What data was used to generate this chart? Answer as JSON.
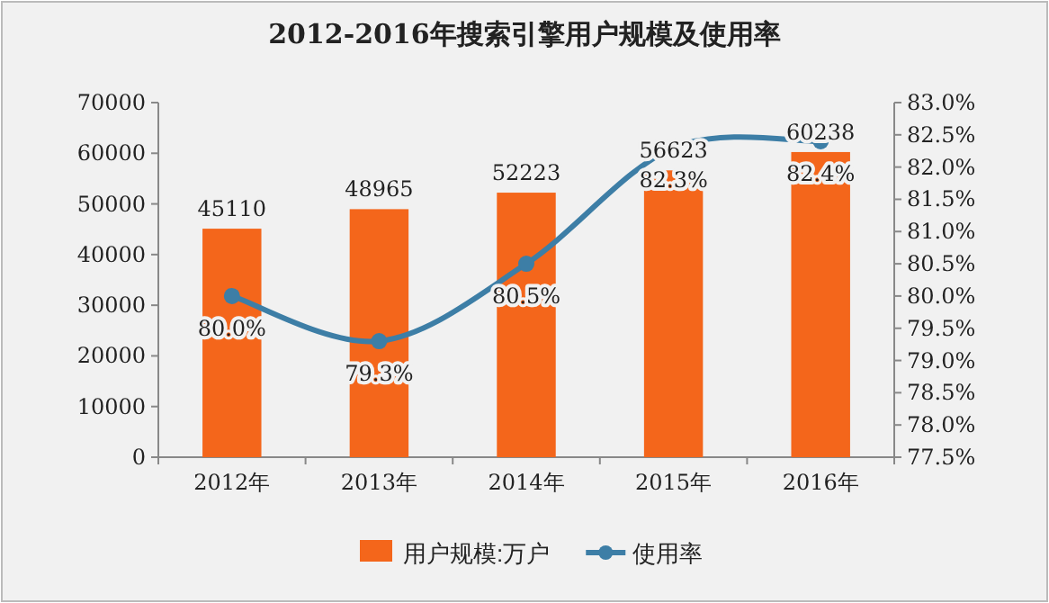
{
  "chart_data": {
    "type": "bar",
    "title": "2012-2016年搜索引擎用户规模及使用率",
    "categories": [
      "2012年",
      "2013年",
      "2014年",
      "2015年",
      "2016年"
    ],
    "series": [
      {
        "name": "用户规模:万户",
        "color": "#f4661b",
        "values": [
          45110,
          48965,
          52223,
          56623,
          60238
        ],
        "value_labels": [
          "45110",
          "48965",
          "52223",
          "56623",
          "60238"
        ]
      },
      {
        "name": "使用率",
        "type": "line",
        "axis": "y2",
        "color": "#3d7ea6",
        "marker": "circle",
        "values": [
          80.0,
          79.3,
          80.5,
          82.3,
          82.4
        ],
        "value_labels": [
          "80.0%",
          "79.3%",
          "80.5%",
          "82.3%",
          "82.4%"
        ]
      }
    ],
    "ylim": [
      0,
      70000
    ],
    "yticks": [
      0,
      10000,
      20000,
      30000,
      40000,
      50000,
      60000,
      70000
    ],
    "y2lim": [
      77.5,
      83
    ],
    "y2ticks": [
      {
        "value": 77.5,
        "label": "77.5%"
      },
      {
        "value": 78,
        "label": "78.0%"
      },
      {
        "value": 78.5,
        "label": "78.5%"
      },
      {
        "value": 79,
        "label": "79.0%"
      },
      {
        "value": 79.5,
        "label": "79.5%"
      },
      {
        "value": 80,
        "label": "80.0%"
      },
      {
        "value": 80.5,
        "label": "80.5%"
      },
      {
        "value": 81,
        "label": "81.0%"
      },
      {
        "value": 81.5,
        "label": "81.5%"
      },
      {
        "value": 82,
        "label": "82.0%"
      },
      {
        "value": 82.5,
        "label": "82.5%"
      },
      {
        "value": 83,
        "label": "83.0%"
      }
    ],
    "legend": "bottom"
  }
}
